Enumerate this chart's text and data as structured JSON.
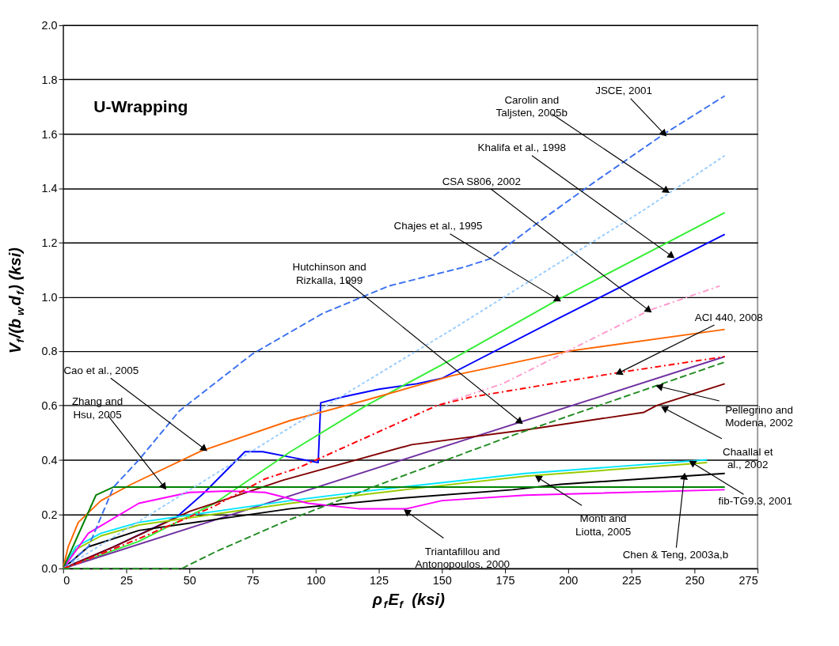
{
  "chart_data": {
    "type": "line",
    "title": "U-Wrapping",
    "xlabel": "ρ$_{f}$E$_{f}$ (ksi)",
    "ylabel": "V$_{f}$/(b$_{w}$d$_{f}$) (ksi)",
    "xlim": [
      0,
      275
    ],
    "xticks": [
      0,
      25,
      50,
      75,
      100,
      125,
      150,
      175,
      200,
      225,
      250,
      275
    ],
    "ylim": [
      0,
      2.0
    ],
    "yticks": [
      {
        "value": 0,
        "label": "0.0"
      },
      {
        "value": 0.2,
        "label": "0.2"
      },
      {
        "value": 0.4,
        "label": "0.4"
      },
      {
        "value": 0.6,
        "label": "0.6"
      },
      {
        "value": 0.8,
        "label": "0.8"
      },
      {
        "value": 1.0,
        "label": "1.0"
      },
      {
        "value": 1.2,
        "label": "1.2"
      },
      {
        "value": 1.4,
        "label": "1.4"
      },
      {
        "value": 1.6,
        "label": "1.6"
      },
      {
        "value": 1.8,
        "label": "1.8"
      },
      {
        "value": 2.0,
        "label": "2.0"
      }
    ],
    "grid": "y",
    "legend": false,
    "marker": "none",
    "series": [
      {
        "color": "#3a6ff0",
        "line_style": "dashed",
        "x": [
          0,
          10,
          20,
          30,
          46,
          75,
          103,
          129,
          159,
          169,
          189,
          210,
          238,
          262
        ],
        "values": [
          0,
          0.08,
          0.3,
          0.4,
          0.58,
          0.79,
          0.94,
          1.04,
          1.11,
          1.14,
          1.28,
          1.42,
          1.6,
          1.74
        ]
      },
      {
        "color": "#99ccff",
        "line_style": "dotted",
        "x": [
          0,
          45,
          90,
          154,
          230,
          262
        ],
        "values": [
          0,
          0.26,
          0.52,
          0.88,
          1.32,
          1.52
        ]
      },
      {
        "color": "#0000ff",
        "line_style": "solid",
        "x": [
          0,
          20,
          45,
          56,
          72,
          79,
          90,
          101,
          102,
          110,
          125,
          140,
          150,
          196,
          262
        ],
        "values": [
          0,
          0.08,
          0.19,
          0.28,
          0.43,
          0.43,
          0.41,
          0.39,
          0.61,
          0.63,
          0.66,
          0.68,
          0.7,
          0.92,
          1.23
        ]
      },
      {
        "color": "#33ee33",
        "line_style": "solid",
        "x": [
          0,
          30,
          60,
          90,
          120,
          154,
          196,
          262
        ],
        "values": [
          0,
          0.1,
          0.24,
          0.43,
          0.6,
          0.77,
          0.99,
          1.31
        ]
      },
      {
        "color": "#ff99cc",
        "line_style": "dashdot",
        "x": [
          0,
          6,
          30,
          60,
          80,
          93,
          117,
          148,
          174,
          204,
          232,
          260
        ],
        "values": [
          0,
          0.02,
          0.11,
          0.23,
          0.33,
          0.37,
          0.47,
          0.6,
          0.68,
          0.82,
          0.95,
          1.04
        ]
      },
      {
        "color": "#ff0000",
        "line_style": "dashdot",
        "x": [
          0,
          6,
          30,
          60,
          80,
          93,
          117,
          148,
          161,
          219,
          262
        ],
        "values": [
          0,
          0.02,
          0.11,
          0.23,
          0.33,
          0.37,
          0.47,
          0.6,
          0.63,
          0.72,
          0.78
        ]
      },
      {
        "color": "#7030a0",
        "line_style": "solid",
        "x": [
          0,
          262
        ],
        "values": [
          0,
          0.78
        ]
      },
      {
        "color": "#228b22",
        "line_style": "dashed",
        "x": [
          0,
          47,
          60,
          87,
          127,
          178,
          262
        ],
        "values": [
          0,
          0,
          0.06,
          0.17,
          0.315,
          0.49,
          0.76
        ]
      },
      {
        "color": "#800000",
        "line_style": "solid",
        "x": [
          0,
          20,
          50,
          87,
          138,
          183,
          230,
          235,
          262
        ],
        "values": [
          0,
          0.08,
          0.21,
          0.325,
          0.456,
          0.51,
          0.575,
          0.6,
          0.68
        ]
      },
      {
        "color": "#ff6600",
        "line_style": "solid",
        "x": [
          0,
          2,
          6,
          15,
          27,
          54,
          90,
          120,
          154,
          200,
          262
        ],
        "values": [
          0,
          0.08,
          0.17,
          0.25,
          0.31,
          0.43,
          0.545,
          0.62,
          0.71,
          0.8,
          0.88
        ]
      },
      {
        "color": "#000000",
        "line_style": "solid",
        "x": [
          0,
          10,
          30,
          60,
          90,
          135,
          178,
          197,
          262
        ],
        "values": [
          0,
          0.08,
          0.14,
          0.18,
          0.22,
          0.26,
          0.29,
          0.31,
          0.35
        ]
      },
      {
        "color": "#99cc00",
        "line_style": "solid",
        "x": [
          0,
          5,
          15,
          30,
          60,
          90,
          135,
          183,
          255
        ],
        "values": [
          0,
          0.07,
          0.12,
          0.16,
          0.2,
          0.24,
          0.29,
          0.34,
          0.39
        ]
      },
      {
        "color": "#00e5ff",
        "line_style": "solid",
        "x": [
          0,
          5,
          15,
          30,
          60,
          90,
          120,
          183,
          255
        ],
        "values": [
          0,
          0.08,
          0.13,
          0.17,
          0.21,
          0.25,
          0.285,
          0.35,
          0.4
        ]
      },
      {
        "color": "#ff00ff",
        "line_style": "solid",
        "x": [
          0,
          10,
          30,
          50,
          65,
          80,
          97,
          117,
          136,
          150,
          183,
          262
        ],
        "values": [
          0,
          0.13,
          0.24,
          0.28,
          0.285,
          0.28,
          0.24,
          0.22,
          0.22,
          0.25,
          0.27,
          0.29
        ]
      },
      {
        "color": "#008000",
        "line_style": "solid",
        "x": [
          0,
          13,
          20,
          262
        ],
        "values": [
          0,
          0.27,
          0.3,
          0.3
        ]
      }
    ],
    "annotations": [
      {
        "text": "JSCE, 2001",
        "x": 238,
        "y": 1.6
      },
      {
        "text": "Carolin and\nTaljsten, 2005b",
        "x": 239,
        "y": 1.39
      },
      {
        "text": "Khalifa et al., 1998",
        "x": 241,
        "y": 1.15
      },
      {
        "text": "CSA S806, 2002",
        "x": 232,
        "y": 0.95
      },
      {
        "text": "Chajes et al., 1995",
        "x": 196,
        "y": 0.99
      },
      {
        "text": "Hutchinson and\nRizkalla, 1999",
        "x": 181,
        "y": 0.54
      },
      {
        "text": "ACI 440, 2008",
        "x": 220,
        "y": 0.72
      },
      {
        "text": "Pellegrino and\nModena, 2002",
        "x": 236,
        "y": 0.67
      },
      {
        "text": "Chaallal et\nal., 2002",
        "x": 238,
        "y": 0.59
      },
      {
        "text": "fib-TG9.3, 2001",
        "x": 249,
        "y": 0.39
      },
      {
        "text": "Monti and\nLiotta, 2005",
        "x": 188,
        "y": 0.335
      },
      {
        "text": "Triantafillou and\nAntonopoulos, 2000",
        "x": 136,
        "y": 0.21
      },
      {
        "text": "Chen & Teng, 2003a,b",
        "x": 246,
        "y": 0.34
      },
      {
        "text": "Cao et al., 2005",
        "x": 56,
        "y": 0.44
      },
      {
        "text": "Zhang and\nHsu, 2005",
        "x": 40,
        "y": 0.3
      }
    ]
  }
}
